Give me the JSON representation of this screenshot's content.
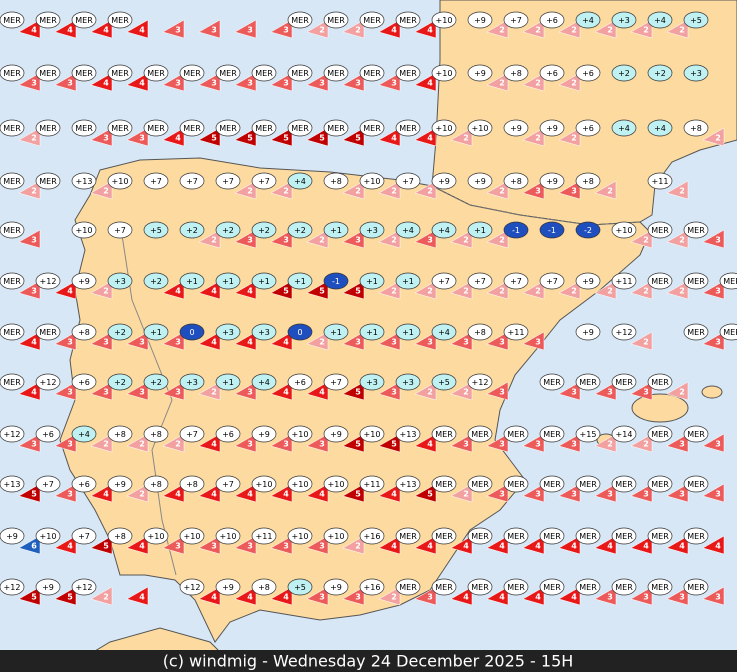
{
  "map": {
    "rows": [
      [
        "MER",
        "MER",
        "MER",
        "MER",
        null,
        null,
        null,
        null,
        "MER",
        "MER",
        "MER",
        "MER",
        "+10",
        "+9",
        "+7",
        "+6",
        "+4",
        "+3",
        "+4",
        "+5",
        null
      ],
      [
        "MER",
        "MER",
        "MER",
        "MER",
        "MER",
        "MER",
        "MER",
        "MER",
        "MER",
        "MER",
        "MER",
        "MER",
        "+10",
        "+9",
        "+8",
        "+6",
        "+6",
        "+2",
        "+2",
        "+3",
        null
      ],
      [
        "MER",
        "MER",
        "MER",
        "MER",
        "MER",
        "MER",
        "MER",
        "MER",
        "MER",
        "MER",
        "MER",
        "MER",
        "+10",
        "+10",
        "+9",
        "+9",
        "+6",
        "+4",
        "+4",
        "+8",
        null
      ],
      [
        "MER",
        "MER",
        "+13",
        "+10",
        "+7",
        "+7",
        "+7",
        "+7",
        "+4",
        "+8",
        "+10",
        "+7",
        "+9",
        "+9",
        "+8",
        "+9",
        "+8",
        null,
        "+11",
        null,
        null
      ],
      [
        "MER",
        null,
        "+10",
        "+7",
        "+5",
        "+2",
        "+2",
        "+2",
        "+2",
        "+1",
        "+3",
        "+4",
        "+4",
        "+1",
        "-1",
        "-1",
        "-2",
        "+10",
        "MER",
        "MER",
        null
      ],
      [
        "MER",
        "+12",
        "+9",
        "+3",
        "+2",
        "+1",
        "+1",
        "+1",
        "+1",
        "-1",
        "+1",
        "+1",
        "+7",
        "+7",
        "+7",
        "+7",
        "+9",
        "+11",
        "MER",
        "MER",
        "MER"
      ],
      [
        "MER",
        "MER",
        "+8",
        "+2",
        "+1",
        "0",
        "+3",
        "+3",
        "0",
        "+1",
        "+1",
        "+1",
        "+4",
        "+8",
        "+11",
        null,
        "+9",
        "+12",
        null,
        "MER",
        "MER"
      ],
      [
        "MER",
        "+12",
        "+6",
        "+2",
        "+2",
        "+3",
        "+1",
        "+4",
        "+6",
        "+7",
        "+3",
        "+3",
        "+5",
        "+12",
        null,
        "MER",
        "MER",
        "MER",
        "MER",
        null,
        null
      ],
      [
        "+12",
        "+6",
        "+4",
        "+8",
        "+8",
        "+7",
        "+6",
        "+9",
        "+10",
        "+9",
        "+10",
        "+13",
        "MER",
        "MER",
        "MER",
        "MER",
        "+15",
        "+14",
        "MER",
        "MER",
        null
      ],
      [
        "+13",
        "+7",
        "+6",
        "+9",
        "+8",
        "+8",
        "+7",
        "+10",
        "+10",
        "+10",
        "+11",
        "+13",
        "MER",
        "MER",
        "MER",
        "MER",
        "MER",
        "MER",
        "MER",
        "MER",
        null
      ],
      [
        "+9",
        "+10",
        "+7",
        "+8",
        "+10",
        "+10",
        "+10",
        "+11",
        "+10",
        "+10",
        "+16",
        "MER",
        "MER",
        "MER",
        "MER",
        "MER",
        "MER",
        "MER",
        "MER",
        "MER",
        null
      ],
      [
        "+12",
        "+9",
        "+12",
        null,
        null,
        "+12",
        "+9",
        "+8",
        "+5",
        "+9",
        "+16",
        "MER",
        "MER",
        "MER",
        "MER",
        "MER",
        "MER",
        "MER",
        "MER",
        "MER",
        null
      ]
    ],
    "winds": [
      [
        4,
        4,
        4,
        4,
        3,
        3,
        3,
        3,
        2,
        2,
        4,
        4,
        null,
        2,
        2,
        2,
        2,
        2,
        2,
        null,
        null
      ],
      [
        3,
        3,
        4,
        4,
        3,
        3,
        3,
        3,
        3,
        3,
        3,
        4,
        null,
        2,
        2,
        2,
        null,
        null,
        null,
        null,
        null
      ],
      [
        2,
        null,
        3,
        3,
        4,
        5,
        5,
        5,
        5,
        5,
        4,
        4,
        2,
        null,
        2,
        2,
        null,
        null,
        null,
        2,
        null
      ],
      [
        2,
        null,
        2,
        null,
        null,
        null,
        2,
        2,
        null,
        2,
        2,
        2,
        null,
        2,
        3,
        3,
        2,
        null,
        2,
        null,
        null
      ],
      [
        3,
        null,
        null,
        null,
        null,
        2,
        3,
        3,
        2,
        3,
        2,
        3,
        2,
        2,
        null,
        null,
        null,
        2,
        2,
        3,
        null
      ],
      [
        3,
        4,
        2,
        null,
        4,
        4,
        4,
        5,
        5,
        5,
        2,
        2,
        2,
        2,
        2,
        2,
        2,
        2,
        2,
        3,
        3
      ],
      [
        4,
        3,
        3,
        3,
        3,
        4,
        4,
        4,
        2,
        3,
        3,
        3,
        3,
        3,
        3,
        null,
        null,
        2,
        null,
        3,
        3
      ],
      [
        4,
        3,
        3,
        3,
        3,
        2,
        3,
        4,
        4,
        5,
        3,
        2,
        2,
        3,
        null,
        3,
        3,
        3,
        2,
        null,
        null
      ],
      [
        3,
        3,
        2,
        2,
        2,
        4,
        3,
        3,
        3,
        5,
        5,
        4,
        3,
        3,
        3,
        3,
        2,
        2,
        3,
        3,
        null
      ],
      [
        5,
        3,
        4,
        2,
        4,
        4,
        4,
        4,
        4,
        5,
        4,
        5,
        2,
        3,
        3,
        3,
        3,
        3,
        3,
        3,
        null
      ],
      [
        6,
        4,
        5,
        4,
        3,
        3,
        3,
        3,
        3,
        2,
        4,
        4,
        4,
        4,
        4,
        4,
        4,
        4,
        4,
        4,
        null
      ],
      [
        5,
        5,
        2,
        4,
        null,
        4,
        4,
        4,
        3,
        3,
        2,
        3,
        4,
        4,
        4,
        4,
        3,
        3,
        3,
        3,
        null
      ]
    ],
    "footer": "(c) windmig - Wednesday 24 December 2025 - 15H"
  }
}
